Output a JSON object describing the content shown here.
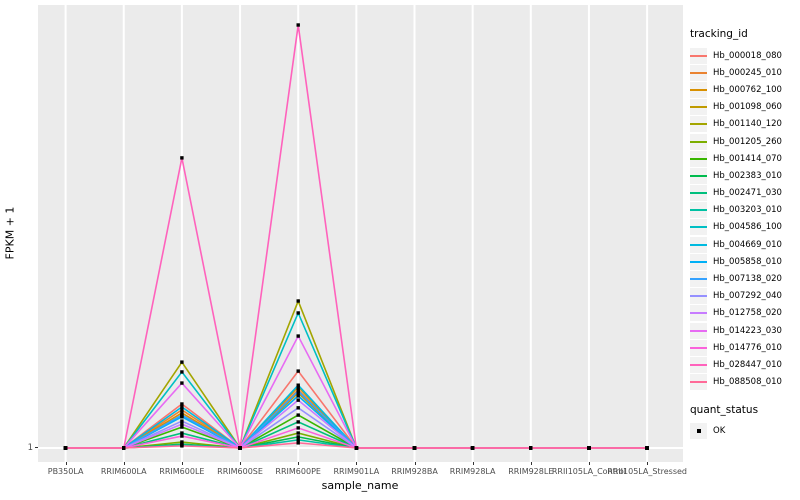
{
  "figure": {
    "background": "#FFFFFF",
    "panel_background": "#EBEBEB",
    "gridline_color": "#FFFFFF",
    "tick_mark_color": "#333333",
    "tick_label_color": "#4D4D4D",
    "point_color": "#000000"
  },
  "axes": {
    "x_title": "sample_name",
    "y_title": "FPKM + 1",
    "y_tick_label": "1"
  },
  "legend": {
    "tracking_title": "tracking_id",
    "quant_title": "quant_status",
    "quant_items": [
      {
        "label": "OK",
        "marker": "black-square"
      }
    ],
    "key_background": "#F2F2F2"
  },
  "chart_data": {
    "type": "line",
    "title": "",
    "xlabel": "sample_name",
    "ylabel": "FPKM + 1",
    "x_categories": [
      "PB350LA",
      "RRIM600LA",
      "RRIM600LE",
      "RRIM600SE",
      "RRIM600PE",
      "RRIM901LA",
      "RRIM928BA",
      "RRIM928LA",
      "RRIM928LE",
      "RRII105LA_Control",
      "RRII105LA_Stressed"
    ],
    "ytick_labels": [
      "1"
    ],
    "ylim": [
      1,
      100
    ],
    "grid": "ggplot-white-on-grey",
    "legend_position": "right",
    "point_marker": "filled-square-black",
    "series": [
      {
        "name": "Hb_000018_080",
        "color": "#F8766D",
        "values": [
          1,
          1,
          11.3,
          1,
          19.0,
          1,
          1,
          1,
          1,
          1,
          1
        ]
      },
      {
        "name": "Hb_000245_010",
        "color": "#EA8331",
        "values": [
          1,
          1,
          9.9,
          1,
          14.6,
          1,
          1,
          1,
          1,
          1,
          1
        ]
      },
      {
        "name": "Hb_000762_100",
        "color": "#D89000",
        "values": [
          1,
          1,
          9.2,
          1,
          15.3,
          1,
          1,
          1,
          1,
          1,
          1
        ]
      },
      {
        "name": "Hb_001098_060",
        "color": "#C09B00",
        "values": [
          1,
          1,
          8.5,
          1,
          13.9,
          1,
          1,
          1,
          1,
          1,
          1
        ]
      },
      {
        "name": "Hb_001140_120",
        "color": "#A3A500",
        "values": [
          1,
          1,
          21.1,
          1,
          35.4,
          1,
          1,
          1,
          1,
          1,
          1
        ]
      },
      {
        "name": "Hb_001205_260",
        "color": "#7CAE00",
        "values": [
          1,
          1,
          2.4,
          1,
          4.5,
          1,
          1,
          1,
          1,
          1,
          1
        ]
      },
      {
        "name": "Hb_001414_070",
        "color": "#39B600",
        "values": [
          1,
          1,
          5.9,
          1,
          8.7,
          1,
          1,
          1,
          1,
          1,
          1
        ]
      },
      {
        "name": "Hb_002383_010",
        "color": "#00BB4E",
        "values": [
          1,
          1,
          1.9,
          1,
          3.6,
          1,
          1,
          1,
          1,
          1,
          1
        ]
      },
      {
        "name": "Hb_002471_030",
        "color": "#00BF7D",
        "values": [
          1,
          1,
          4.5,
          1,
          7.1,
          1,
          1,
          1,
          1,
          1,
          1
        ]
      },
      {
        "name": "Hb_003203_010",
        "color": "#00C1A3",
        "values": [
          1,
          1,
          1.7,
          1,
          2.9,
          1,
          1,
          1,
          1,
          1,
          1
        ]
      },
      {
        "name": "Hb_004586_100",
        "color": "#00BFC4",
        "values": [
          1,
          1,
          18.8,
          1,
          32.6,
          1,
          1,
          1,
          1,
          1,
          1
        ]
      },
      {
        "name": "Hb_004669_010",
        "color": "#00BAE0",
        "values": [
          1,
          1,
          10.6,
          1,
          15.7,
          1,
          1,
          1,
          1,
          1,
          1
        ]
      },
      {
        "name": "Hb_005858_010",
        "color": "#00B0F6",
        "values": [
          1,
          1,
          8.3,
          1,
          13.2,
          1,
          1,
          1,
          1,
          1,
          1
        ]
      },
      {
        "name": "Hb_007138_020",
        "color": "#35A2FF",
        "values": [
          1,
          1,
          8.7,
          1,
          14.3,
          1,
          1,
          1,
          1,
          1,
          1
        ]
      },
      {
        "name": "Hb_007292_040",
        "color": "#9590FF",
        "values": [
          1,
          1,
          7.3,
          1,
          10.4,
          1,
          1,
          1,
          1,
          1,
          1
        ]
      },
      {
        "name": "Hb_012758_020",
        "color": "#C77CFF",
        "values": [
          1,
          1,
          6.6,
          1,
          12.2,
          1,
          1,
          1,
          1,
          1,
          1
        ]
      },
      {
        "name": "Hb_014223_030",
        "color": "#E76BF3",
        "values": [
          1,
          1,
          16.2,
          1,
          27.2,
          1,
          1,
          1,
          1,
          1,
          1
        ]
      },
      {
        "name": "Hb_014776_010",
        "color": "#FA62DB",
        "values": [
          1,
          1,
          3.8,
          1,
          5.7,
          1,
          1,
          1,
          1,
          1,
          1
        ]
      },
      {
        "name": "Hb_028447_010",
        "color": "#FF62BC",
        "values": [
          1,
          1,
          68.9,
          1,
          100,
          1,
          1,
          1,
          1,
          1,
          1
        ]
      },
      {
        "name": "Hb_088508_010",
        "color": "#FF6A98",
        "values": [
          1,
          1,
          1.5,
          1,
          2.2,
          1,
          1,
          1,
          1,
          1,
          1
        ]
      }
    ]
  }
}
